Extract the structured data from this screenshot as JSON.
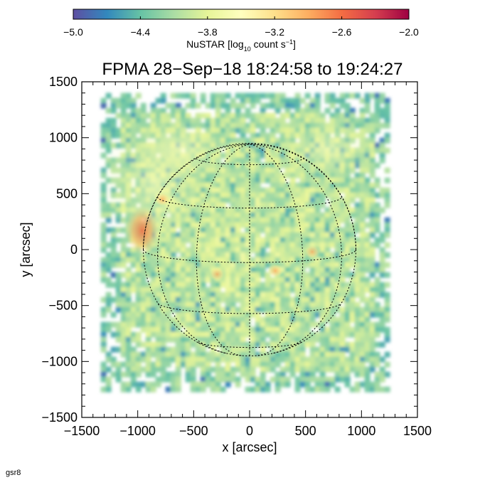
{
  "chart_data": {
    "type": "heatmap",
    "title": "FPMA 28−Sep−18 18:24:58 to 19:24:27",
    "xlabel": "x [arcsec]",
    "ylabel": "y [arcsec]",
    "xlim": [
      -1500,
      1500
    ],
    "ylim": [
      -1500,
      1500
    ],
    "x_ticks": [
      -1500,
      -1000,
      -500,
      0,
      500,
      1000,
      1500
    ],
    "y_ticks": [
      -1500,
      -1000,
      -500,
      0,
      500,
      1000,
      1500
    ],
    "x_tick_labels": [
      "−1500",
      "−1000",
      "−500",
      "0",
      "500",
      "1000",
      "1500"
    ],
    "y_tick_labels": [
      "−1500",
      "−1000",
      "−500",
      "0",
      "500",
      "1000",
      "1500"
    ],
    "data_extent": {
      "x": [
        -1330,
        1250
      ],
      "y": [
        -1230,
        1400
      ]
    },
    "solar_disk": {
      "center": [
        0,
        0
      ],
      "radius": 950,
      "grid": true
    },
    "hotspots": [
      {
        "x": -960,
        "y": 170,
        "level": -2.9
      },
      {
        "x": -780,
        "y": 450,
        "level": -3.3
      },
      {
        "x": -290,
        "y": -220,
        "level": -3.4
      },
      {
        "x": 230,
        "y": -190,
        "level": -3.5
      },
      {
        "x": 560,
        "y": -20,
        "level": -3.5
      }
    ],
    "colorbar": {
      "label": "NuSTAR [log₁₀ count s⁻¹]",
      "range": [
        -5.0,
        -2.0
      ],
      "ticks": [
        -5.0,
        -4.4,
        -3.8,
        -3.2,
        -2.6,
        -2.0
      ],
      "tick_labels": [
        "−5.0",
        "−4.4",
        "−3.8",
        "−3.2",
        "−2.6",
        "−2.0"
      ],
      "colors": [
        "#5e4fa2",
        "#3288bd",
        "#66c2a5",
        "#abdda4",
        "#e6f598",
        "#ffffbf",
        "#fee08b",
        "#fdae61",
        "#f46d43",
        "#d53e4f",
        "#9e0142"
      ]
    },
    "grid": true
  },
  "footer": "gsr8"
}
